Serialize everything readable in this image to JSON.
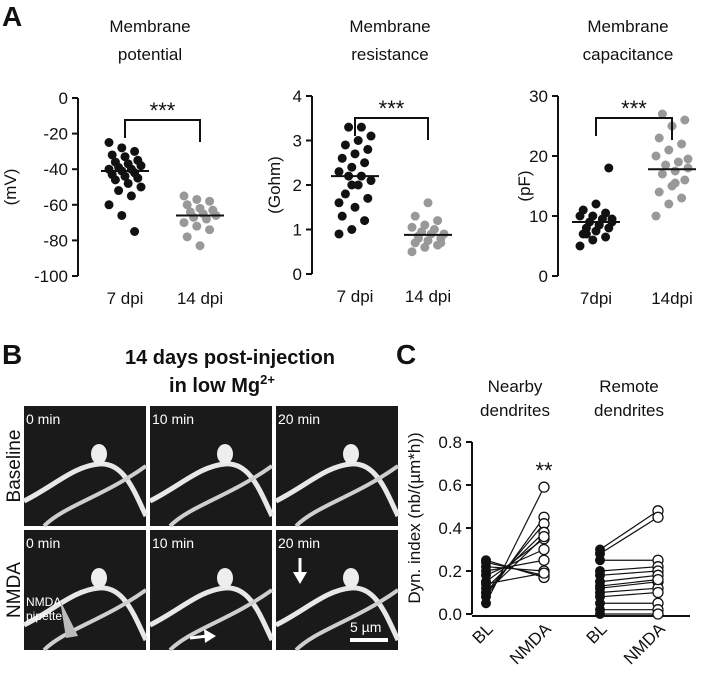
{
  "panel_labels": [
    "A",
    "B",
    "C"
  ],
  "image_panel": {
    "title": "14 days post-injection",
    "subtitle": "in low Mg",
    "subtitle_sup": "2+",
    "row_labels": [
      "Baseline",
      "NMDA"
    ],
    "time_labels": [
      "0 min",
      "10 min",
      "20 min"
    ],
    "pipette_label": [
      "NMDA",
      "pipette"
    ],
    "scale_label": "5 µm"
  },
  "chart_data": [
    {
      "type": "strip",
      "title": [
        "Membrane",
        "potential"
      ],
      "y_label": "(mV)",
      "categories": [
        "7 dpi",
        "14 dpi"
      ],
      "values": [
        [
          -25,
          -28,
          -30,
          -32,
          -33,
          -35,
          -36,
          -37,
          -38,
          -39,
          -40,
          -40,
          -41,
          -42,
          -43,
          -44,
          -45,
          -46,
          -48,
          -50,
          -52,
          -55,
          -60,
          -66,
          -75
        ],
        [
          -55,
          -57,
          -58,
          -60,
          -62,
          -63,
          -64,
          -65,
          -66,
          -67,
          -68,
          -70,
          -72,
          -74,
          -78,
          -83
        ]
      ],
      "colors": [
        "#111111",
        "#999999"
      ],
      "means": [
        -41,
        -66
      ],
      "annotation": "***",
      "ylim": [
        -100,
        0
      ],
      "yticks": [
        0,
        -20,
        -40,
        -60,
        -80,
        -100
      ]
    },
    {
      "type": "strip",
      "title": [
        "Membrane",
        "resistance"
      ],
      "y_label": "(Gohm)",
      "categories": [
        "7 dpi",
        "14 dpi"
      ],
      "values": [
        [
          0.9,
          1.0,
          1.2,
          1.3,
          1.5,
          1.7,
          1.8,
          2.0,
          2.1,
          2.2,
          2.2,
          2.3,
          2.4,
          2.5,
          2.6,
          2.7,
          2.8,
          2.9,
          3.0,
          3.1,
          3.3,
          3.3,
          1.6,
          2.0
        ],
        [
          0.5,
          0.6,
          0.65,
          0.7,
          0.75,
          0.8,
          0.85,
          0.9,
          0.9,
          0.95,
          1.0,
          1.05,
          1.1,
          1.2,
          1.3,
          1.6,
          0.7,
          0.8
        ]
      ],
      "colors": [
        "#111111",
        "#999999"
      ],
      "means": [
        2.2,
        0.88
      ],
      "annotation": "***",
      "ylim": [
        0,
        4
      ],
      "yticks": [
        0,
        1,
        2,
        3,
        4
      ]
    },
    {
      "type": "strip",
      "title": [
        "Membrane",
        "capacitance"
      ],
      "y_label": "(pF)",
      "categories": [
        "7dpi",
        "14dpi"
      ],
      "values": [
        [
          5,
          6,
          6.5,
          7,
          7.5,
          8,
          8,
          8.5,
          9,
          9,
          9.5,
          10,
          10,
          10.5,
          11,
          12,
          18,
          7,
          8.5,
          9.5
        ],
        [
          10,
          12,
          13,
          14,
          15,
          16,
          17,
          17.5,
          18,
          18.5,
          19,
          20,
          21,
          22,
          23,
          25,
          26,
          27,
          15.5,
          19.5
        ]
      ],
      "colors": [
        "#111111",
        "#999999"
      ],
      "means": [
        9,
        17.8
      ],
      "annotation": "***",
      "ylim": [
        0,
        30
      ],
      "yticks": [
        0,
        10,
        20,
        30
      ]
    },
    {
      "type": "paired",
      "y_label": "Dyn. index (nb/(µm*h))",
      "categories": [
        "BL",
        "NMDA",
        "BL",
        "NMDA"
      ],
      "groups": [
        {
          "label": [
            "Nearby",
            "dendrites"
          ],
          "before": [
            0.05,
            0.08,
            0.1,
            0.12,
            0.15,
            0.18,
            0.2,
            0.22,
            0.24,
            0.25,
            0.1,
            0.14
          ],
          "after": [
            0.59,
            0.45,
            0.42,
            0.38,
            0.35,
            0.3,
            0.25,
            0.2,
            0.18,
            0.17,
            0.36,
            0.19
          ],
          "annotation": "**"
        },
        {
          "label": [
            "Remote",
            "dendrites"
          ],
          "before": [
            0.3,
            0.28,
            0.25,
            0.2,
            0.18,
            0.15,
            0.12,
            0.1,
            0.08,
            0.05,
            0.02,
            0.0,
            0.13
          ],
          "after": [
            0.48,
            0.45,
            0.25,
            0.22,
            0.2,
            0.18,
            0.15,
            0.12,
            0.1,
            0.05,
            0.02,
            0.0,
            0.16
          ]
        }
      ],
      "ylim": [
        0,
        0.8
      ],
      "yticks": [
        {
          "value": 0,
          "label": "0.0"
        },
        0.2,
        0.4,
        0.6,
        0.8
      ]
    }
  ]
}
